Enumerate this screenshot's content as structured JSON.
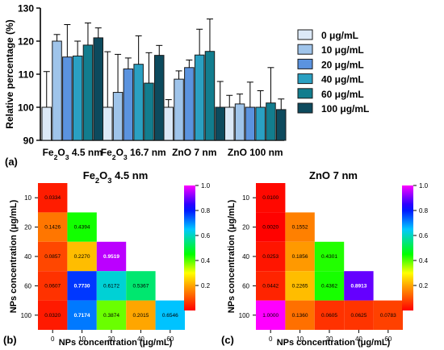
{
  "chart_data": [
    {
      "type": "bar",
      "panel": "(a)",
      "ylabel": "Relative percentage (%)",
      "ylim": [
        90,
        130
      ],
      "yticks": [
        90,
        100,
        110,
        120,
        130
      ],
      "categories": [
        "Fe2O3 4.5 nm",
        "Fe2O3 16.7 nm",
        "ZnO 7 nm",
        "ZnO 100 nm"
      ],
      "series": [
        {
          "name": "0 μg/mL",
          "color": "#dce9f7",
          "values": [
            100,
            100,
            100,
            100
          ],
          "errors": [
            10.8,
            16.8,
            2.3,
            3.6
          ]
        },
        {
          "name": "10 μg/mL",
          "color": "#9fc4ea",
          "values": [
            120,
            104.5,
            108.5,
            101
          ],
          "errors": [
            2,
            11.5,
            2.5,
            3
          ]
        },
        {
          "name": "20 μg/mL",
          "color": "#5b93df",
          "values": [
            115.2,
            111.6,
            112,
            100
          ],
          "errors": [
            9.8,
            3.3,
            2.3,
            7.6
          ]
        },
        {
          "name": "40 μg/mL",
          "color": "#2aa0c2",
          "values": [
            115.5,
            113,
            115.8,
            100
          ],
          "errors": [
            4.5,
            8.6,
            7.8,
            5
          ]
        },
        {
          "name": "60 μg/mL",
          "color": "#127d8e",
          "values": [
            118.8,
            107.3,
            116.9,
            101.3
          ],
          "errors": [
            6.7,
            9.2,
            9.8,
            10.7
          ]
        },
        {
          "name": "100 μg/mL",
          "color": "#0d4a5d",
          "values": [
            121,
            115.7,
            100,
            99.3
          ],
          "errors": [
            3,
            3,
            7.8,
            3.2
          ]
        }
      ],
      "category_labels": [
        {
          "a": "Fe",
          "s1": "2",
          "b": "O",
          "s2": "3",
          "c": " 4.5 nm"
        },
        {
          "a": "Fe",
          "s1": "2",
          "b": "O",
          "s2": "3",
          "c": " 16.7 nm"
        },
        {
          "a": "ZnO 7 nm",
          "s1": "",
          "b": "",
          "s2": "",
          "c": ""
        },
        {
          "a": "ZnO 100 nm",
          "s1": "",
          "b": "",
          "s2": "",
          "c": ""
        }
      ]
    },
    {
      "type": "heatmap",
      "panel": "(b)",
      "title": {
        "a": "Fe",
        "s1": "2",
        "b": "O",
        "s2": "3",
        "c": " 4.5 nm"
      },
      "xlabel": "NPs concentration (μg/mL)",
      "ylabel": "NPs concentration (μg/mL)",
      "x_ticks": [
        "0",
        "10",
        "20",
        "40",
        "60"
      ],
      "y_ticks": [
        "10",
        "20",
        "40",
        "60",
        "100"
      ],
      "colorbar_ticks": [
        "1.0",
        "0.8",
        "0.6",
        "0.4",
        "0.2"
      ],
      "cells": [
        [
          "0.0334"
        ],
        [
          "0.1426",
          "0.4394"
        ],
        [
          "0.0857",
          "0.2270",
          "0.9519"
        ],
        [
          "0.0607",
          "0.7730",
          "0.6172",
          "0.5367"
        ],
        [
          "0.0320",
          "0.7174",
          "0.3874",
          "0.2015",
          "0.6546"
        ]
      ]
    },
    {
      "type": "heatmap",
      "panel": "(c)",
      "title": {
        "a": "ZnO 7 nm",
        "s1": "",
        "b": "",
        "s2": "",
        "c": ""
      },
      "xlabel": "NPs concentration (μg/mL)",
      "ylabel": "NPs concentration (μg/mL)",
      "x_ticks": [
        "0",
        "10",
        "20",
        "40",
        "60"
      ],
      "y_ticks": [
        "10",
        "20",
        "40",
        "60",
        "100"
      ],
      "colorbar_ticks": [
        "1.0",
        "0.8",
        "0.6",
        "0.4",
        "0.2"
      ],
      "cells": [
        [
          "0.0100"
        ],
        [
          "0.0020",
          "0.1552"
        ],
        [
          "0.0253",
          "0.1856",
          "0.4301"
        ],
        [
          "0.0442",
          "0.2265",
          "0.4362",
          "0.8913"
        ],
        [
          "1.0000",
          "0.1360",
          "0.0605",
          "0.0625",
          "0.0783"
        ]
      ]
    }
  ]
}
